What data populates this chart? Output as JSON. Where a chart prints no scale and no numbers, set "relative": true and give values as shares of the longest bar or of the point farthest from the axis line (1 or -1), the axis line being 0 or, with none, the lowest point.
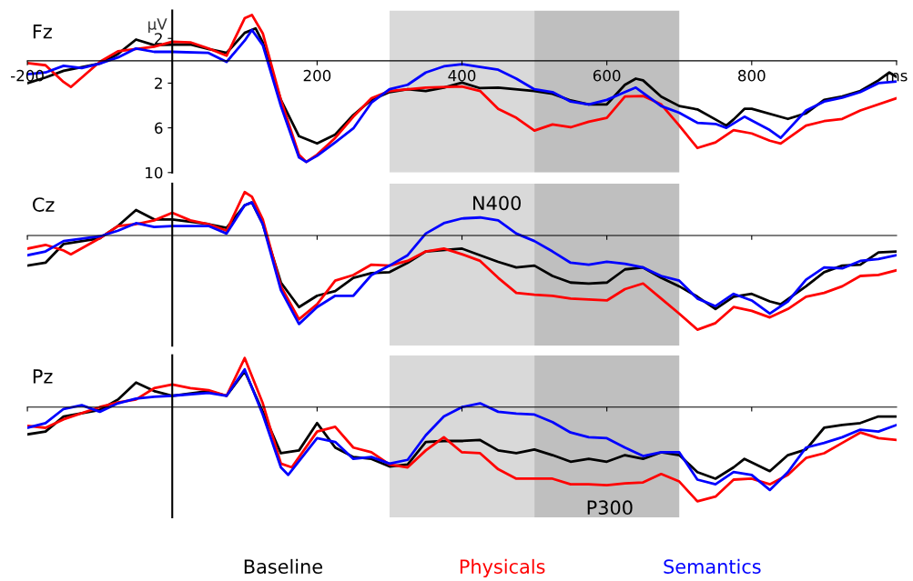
{
  "chart_data": [
    {
      "type": "line",
      "title": "Fz",
      "ylabel": "μV",
      "xlim": [
        -200,
        1000
      ],
      "ylim": [
        10,
        -4.5
      ],
      "xticks": [
        -200,
        200,
        400,
        600,
        800,
        {
          "value": 1000,
          "label": "ms"
        }
      ],
      "yticks": [
        {
          "value": -2,
          "label": "2"
        },
        2,
        6,
        10
      ],
      "bands": [
        {
          "axis": "x",
          "from": 300,
          "to": 500,
          "color": "#d9d9d9"
        },
        {
          "axis": "x",
          "from": 500,
          "to": 700,
          "color": "#bfbfbf"
        }
      ],
      "series": [
        {
          "color": "#000000",
          "x": [
            -200,
            -175,
            -150,
            -100,
            -75,
            -50,
            -25,
            0,
            25,
            50,
            75,
            100,
            115,
            125,
            150,
            175,
            200,
            225,
            250,
            275,
            300,
            325,
            350,
            375,
            400,
            425,
            450,
            500,
            525,
            550,
            575,
            600,
            625,
            640,
            650,
            675,
            700,
            725,
            750,
            765,
            775,
            790,
            800,
            850,
            875,
            900,
            925,
            950,
            975,
            990,
            1000
          ],
          "values": [
            2.0,
            1.5,
            0.9,
            0.25,
            -0.6,
            -1.9,
            -1.4,
            -1.45,
            -1.45,
            -1.05,
            -0.7,
            -2.5,
            -2.9,
            -1.65,
            3.5,
            6.75,
            7.4,
            6.6,
            4.85,
            3.5,
            2.8,
            2.55,
            2.7,
            2.4,
            1.95,
            2.45,
            2.4,
            2.7,
            2.95,
            3.55,
            3.9,
            3.9,
            2.15,
            1.6,
            1.75,
            3.2,
            4.05,
            4.35,
            5.25,
            5.8,
            5.25,
            4.3,
            4.3,
            5.2,
            4.7,
            3.5,
            3.2,
            2.7,
            1.75,
            1.05,
            1.45
          ]
        },
        {
          "color": "#ff0000",
          "x": [
            -200,
            -175,
            -150,
            -140,
            -100,
            -75,
            -50,
            -25,
            0,
            25,
            50,
            75,
            100,
            110,
            125,
            150,
            175,
            185,
            200,
            225,
            250,
            275,
            300,
            350,
            400,
            425,
            450,
            475,
            500,
            525,
            550,
            575,
            600,
            625,
            650,
            675,
            700,
            725,
            750,
            775,
            800,
            825,
            840,
            875,
            900,
            925,
            950,
            1000
          ],
          "values": [
            0.2,
            0.4,
            1.9,
            2.35,
            0.1,
            -0.85,
            -1.05,
            -1.25,
            -1.7,
            -1.65,
            -1.1,
            -0.45,
            -3.8,
            -4.1,
            -2.45,
            3.5,
            8.4,
            9.05,
            8.4,
            6.9,
            5.0,
            3.35,
            2.7,
            2.4,
            2.3,
            2.7,
            4.3,
            5.1,
            6.25,
            5.7,
            5.95,
            5.45,
            5.1,
            3.2,
            3.15,
            3.9,
            5.8,
            7.8,
            7.3,
            6.2,
            6.5,
            7.15,
            7.4,
            5.8,
            5.4,
            5.2,
            4.45,
            3.35
          ]
        },
        {
          "color": "#0000ff",
          "x": [
            -200,
            -175,
            -150,
            -125,
            -100,
            -75,
            -50,
            -25,
            0,
            50,
            75,
            100,
            110,
            125,
            150,
            175,
            185,
            200,
            225,
            250,
            275,
            300,
            325,
            350,
            375,
            400,
            425,
            450,
            475,
            500,
            525,
            550,
            575,
            600,
            625,
            640,
            675,
            700,
            725,
            750,
            765,
            790,
            825,
            840,
            875,
            900,
            925,
            950,
            975,
            1000
          ],
          "values": [
            1.2,
            1.05,
            0.45,
            0.65,
            0.25,
            -0.3,
            -1.1,
            -0.8,
            -0.8,
            -0.7,
            0.1,
            -1.8,
            -2.75,
            -1.4,
            4.05,
            8.65,
            9.05,
            8.5,
            7.3,
            6.05,
            3.75,
            2.55,
            2.15,
            1.05,
            0.5,
            0.3,
            0.55,
            0.8,
            1.6,
            2.55,
            2.8,
            3.65,
            3.9,
            3.5,
            2.8,
            2.4,
            4.05,
            4.65,
            5.55,
            5.65,
            6.0,
            5.0,
            6.2,
            6.9,
            4.45,
            3.65,
            3.3,
            2.8,
            2.0,
            1.85
          ]
        }
      ]
    },
    {
      "type": "line",
      "title": "Cz",
      "relative": true,
      "xlim": [
        -200,
        1000
      ],
      "tick_labels": false,
      "xticks": [
        -200,
        200,
        400,
        600,
        800
      ],
      "bands": [
        {
          "axis": "x",
          "from": 300,
          "to": 500,
          "color": "#d9d9d9"
        },
        {
          "axis": "x",
          "from": 500,
          "to": 700,
          "color": "#bfbfbf"
        }
      ],
      "annotations": [
        "N400"
      ],
      "series": [
        {
          "color": "#000000",
          "x": [
            -200,
            -175,
            -150,
            -100,
            -75,
            -50,
            -25,
            0,
            50,
            75,
            100,
            110,
            125,
            150,
            175,
            200,
            225,
            250,
            275,
            300,
            325,
            350,
            400,
            425,
            450,
            475,
            500,
            525,
            550,
            575,
            600,
            625,
            650,
            675,
            700,
            725,
            750,
            775,
            800,
            825,
            840,
            875,
            900,
            925,
            950,
            975,
            1000
          ],
          "values": [
            -0.32,
            -0.29,
            -0.09,
            -0.03,
            0.1,
            0.27,
            0.17,
            0.17,
            0.12,
            0.08,
            0.32,
            0.35,
            0.12,
            -0.5,
            -0.76,
            -0.64,
            -0.59,
            -0.45,
            -0.4,
            -0.39,
            -0.29,
            -0.17,
            -0.14,
            -0.21,
            -0.28,
            -0.34,
            -0.32,
            -0.43,
            -0.5,
            -0.51,
            -0.5,
            -0.36,
            -0.34,
            -0.45,
            -0.54,
            -0.65,
            -0.78,
            -0.65,
            -0.62,
            -0.7,
            -0.73,
            -0.54,
            -0.39,
            -0.32,
            -0.31,
            -0.18,
            -0.17
          ]
        },
        {
          "color": "#ff0000",
          "x": [
            -200,
            -175,
            -150,
            -140,
            -100,
            -75,
            -50,
            -25,
            0,
            25,
            50,
            75,
            100,
            110,
            125,
            150,
            175,
            200,
            225,
            250,
            275,
            300,
            325,
            350,
            375,
            400,
            425,
            450,
            475,
            500,
            525,
            550,
            575,
            600,
            625,
            650,
            675,
            700,
            725,
            750,
            775,
            800,
            825,
            850,
            875,
            900,
            925,
            950,
            975,
            1000
          ],
          "values": [
            -0.14,
            -0.1,
            -0.16,
            -0.2,
            -0.03,
            0.1,
            0.12,
            0.16,
            0.24,
            0.16,
            0.12,
            0.05,
            0.46,
            0.41,
            0.17,
            -0.54,
            -0.89,
            -0.73,
            -0.48,
            -0.42,
            -0.31,
            -0.32,
            -0.27,
            -0.17,
            -0.14,
            -0.2,
            -0.27,
            -0.45,
            -0.61,
            -0.63,
            -0.64,
            -0.67,
            -0.68,
            -0.69,
            -0.57,
            -0.51,
            -0.67,
            -0.83,
            -1,
            -0.93,
            -0.76,
            -0.8,
            -0.87,
            -0.78,
            -0.65,
            -0.61,
            -0.54,
            -0.43,
            -0.42,
            -0.37
          ]
        },
        {
          "color": "#0000ff",
          "x": [
            -200,
            -175,
            -150,
            -100,
            -75,
            -50,
            -25,
            0,
            50,
            75,
            100,
            110,
            125,
            150,
            175,
            200,
            225,
            250,
            275,
            300,
            325,
            350,
            375,
            400,
            425,
            450,
            475,
            500,
            525,
            550,
            575,
            600,
            625,
            650,
            675,
            700,
            725,
            750,
            775,
            800,
            825,
            850,
            875,
            900,
            925,
            950,
            975,
            1000
          ],
          "values": [
            -0.21,
            -0.17,
            -0.06,
            -0.01,
            0.05,
            0.13,
            0.09,
            0.1,
            0.1,
            0.02,
            0.32,
            0.35,
            0.12,
            -0.58,
            -0.94,
            -0.76,
            -0.64,
            -0.64,
            -0.42,
            -0.32,
            -0.21,
            0.02,
            0.13,
            0.18,
            0.19,
            0.16,
            0.02,
            -0.06,
            -0.17,
            -0.29,
            -0.31,
            -0.28,
            -0.3,
            -0.34,
            -0.43,
            -0.48,
            -0.67,
            -0.75,
            -0.62,
            -0.69,
            -0.83,
            -0.7,
            -0.47,
            -0.34,
            -0.35,
            -0.27,
            -0.25,
            -0.21
          ]
        }
      ]
    },
    {
      "type": "line",
      "title": "Pz",
      "relative": true,
      "xlim": [
        -200,
        1000
      ],
      "tick_labels": false,
      "xticks": [
        -200,
        200,
        400,
        600,
        800
      ],
      "bands": [
        {
          "axis": "x",
          "from": 300,
          "to": 500,
          "color": "#d9d9d9"
        },
        {
          "axis": "x",
          "from": 500,
          "to": 700,
          "color": "#bfbfbf"
        }
      ],
      "annotations": [
        "P300"
      ],
      "series": [
        {
          "name": "Baseline",
          "color": "#000000",
          "x": [
            -200,
            -175,
            -150,
            -100,
            -75,
            -50,
            -25,
            0,
            50,
            75,
            100,
            125,
            150,
            175,
            200,
            225,
            250,
            275,
            300,
            325,
            350,
            375,
            400,
            425,
            450,
            475,
            500,
            525,
            550,
            575,
            600,
            625,
            650,
            675,
            700,
            725,
            750,
            775,
            790,
            825,
            850,
            875,
            900,
            925,
            950,
            975,
            1000
          ],
          "values": [
            -0.29,
            -0.26,
            -0.1,
            -0.03,
            0.08,
            0.26,
            0.17,
            0.12,
            0.17,
            0.12,
            0.38,
            -0.05,
            -0.49,
            -0.46,
            -0.17,
            -0.43,
            -0.53,
            -0.55,
            -0.63,
            -0.61,
            -0.37,
            -0.36,
            -0.36,
            -0.35,
            -0.46,
            -0.49,
            -0.45,
            -0.51,
            -0.58,
            -0.55,
            -0.58,
            -0.51,
            -0.55,
            -0.48,
            -0.51,
            -0.69,
            -0.76,
            -0.64,
            -0.55,
            -0.68,
            -0.51,
            -0.45,
            -0.22,
            -0.19,
            -0.17,
            -0.1,
            -0.1
          ]
        },
        {
          "name": "Physicals",
          "color": "#ff0000",
          "x": [
            -200,
            -175,
            -150,
            -100,
            -75,
            -50,
            -25,
            0,
            25,
            50,
            75,
            100,
            125,
            150,
            165,
            200,
            225,
            250,
            275,
            300,
            325,
            350,
            375,
            400,
            425,
            450,
            475,
            500,
            525,
            550,
            575,
            600,
            625,
            650,
            675,
            700,
            725,
            750,
            775,
            800,
            825,
            850,
            875,
            900,
            925,
            950,
            975,
            1000
          ],
          "values": [
            -0.2,
            -0.22,
            -0.13,
            0,
            0.05,
            0.08,
            0.2,
            0.24,
            0.2,
            0.18,
            0.12,
            0.52,
            0.04,
            -0.6,
            -0.64,
            -0.26,
            -0.21,
            -0.43,
            -0.48,
            -0.61,
            -0.64,
            -0.46,
            -0.32,
            -0.48,
            -0.49,
            -0.66,
            -0.76,
            -0.76,
            -0.76,
            -0.82,
            -0.82,
            -0.83,
            -0.81,
            -0.8,
            -0.71,
            -0.79,
            -1,
            -0.95,
            -0.77,
            -0.76,
            -0.82,
            -0.72,
            -0.54,
            -0.49,
            -0.38,
            -0.27,
            -0.33,
            -0.35
          ]
        },
        {
          "name": "Semantics",
          "color": "#0000ff",
          "x": [
            -200,
            -175,
            -150,
            -125,
            -100,
            -75,
            -50,
            -25,
            0,
            50,
            75,
            100,
            125,
            150,
            160,
            200,
            225,
            250,
            275,
            300,
            325,
            350,
            375,
            400,
            425,
            450,
            475,
            500,
            525,
            550,
            575,
            600,
            625,
            650,
            675,
            700,
            725,
            750,
            775,
            800,
            825,
            850,
            875,
            900,
            925,
            950,
            975,
            1000
          ],
          "values": [
            -0.22,
            -0.17,
            -0.02,
            0.02,
            -0.05,
            0.04,
            0.09,
            0.11,
            0.12,
            0.15,
            0.12,
            0.4,
            -0.08,
            -0.64,
            -0.72,
            -0.33,
            -0.37,
            -0.55,
            -0.53,
            -0.6,
            -0.56,
            -0.3,
            -0.1,
            0,
            0.04,
            -0.05,
            -0.07,
            -0.08,
            -0.16,
            -0.27,
            -0.32,
            -0.33,
            -0.43,
            -0.52,
            -0.48,
            -0.48,
            -0.77,
            -0.82,
            -0.69,
            -0.72,
            -0.88,
            -0.69,
            -0.43,
            -0.38,
            -0.32,
            -0.24,
            -0.26,
            -0.19
          ]
        }
      ]
    }
  ]
}
